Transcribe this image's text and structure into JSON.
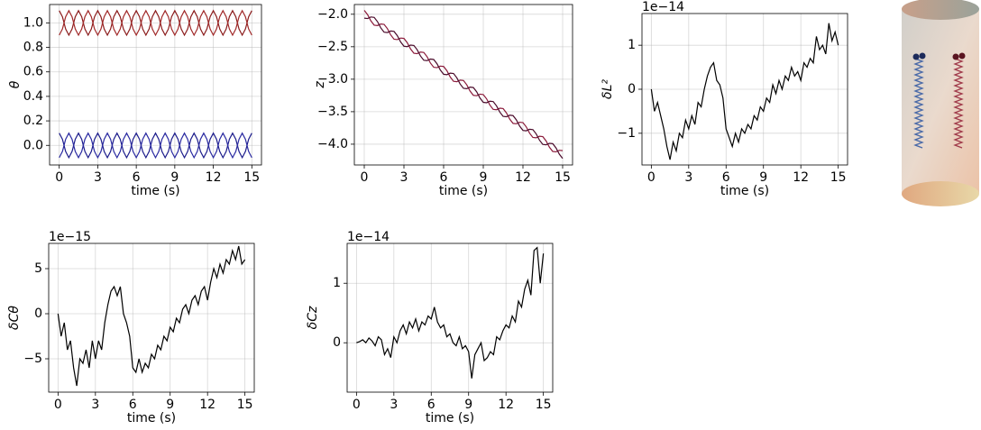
{
  "chart_data": [
    {
      "type": "line",
      "xlabel": "time (s)",
      "ylabel": "θ",
      "grid": true,
      "x": [
        0,
        0.25,
        0.5,
        0.75,
        1,
        1.25,
        1.5,
        1.75,
        2,
        2.25,
        2.5,
        2.75,
        3,
        3.25,
        3.5,
        3.75,
        4,
        4.25,
        4.5,
        4.75,
        5,
        5.25,
        5.5,
        5.75,
        6,
        6.25,
        6.5,
        6.75,
        7,
        7.25,
        7.5,
        7.75,
        8,
        8.25,
        8.5,
        8.75,
        9,
        9.25,
        9.5,
        9.75,
        10,
        10.25,
        10.5,
        10.75,
        11,
        11.25,
        11.5,
        11.75,
        12,
        12.25,
        12.5,
        12.75,
        13,
        13.25,
        13.5,
        13.75,
        14,
        14.25,
        14.5,
        14.75,
        15
      ],
      "xlim": [
        -0.75,
        15.75
      ],
      "ylim": [
        -0.16,
        1.15
      ],
      "xticks": [
        0,
        3,
        6,
        9,
        12,
        15
      ],
      "yticks": [
        {
          "value": 0,
          "label": "0.0"
        },
        0.2,
        0.4,
        0.6,
        0.8,
        {
          "value": 1,
          "label": "1.0"
        }
      ],
      "series": [
        {
          "color": "#8b1c1c",
          "values": [
            1.1,
            1.05,
            0.95,
            0.9,
            0.95,
            1.05,
            1.1,
            1.05,
            0.95,
            0.9,
            0.95,
            1.05,
            1.1,
            1.05,
            0.95,
            0.9,
            0.95,
            1.05,
            1.1,
            1.05,
            0.95,
            0.9,
            0.95,
            1.05,
            1.1,
            1.05,
            0.95,
            0.9,
            0.95,
            1.05,
            1.1,
            1.05,
            0.95,
            0.9,
            0.95,
            1.05,
            1.1,
            1.05,
            0.95,
            0.9,
            0.95,
            1.05,
            1.1,
            1.05,
            0.95,
            0.9,
            0.95,
            1.05,
            1.1,
            1.05,
            0.95,
            0.9,
            0.95,
            1.05,
            1.1,
            1.05,
            0.95,
            0.9,
            0.95,
            1.05,
            1.1
          ]
        },
        {
          "color": "#a12a2a",
          "values": [
            0.9,
            0.95,
            1.05,
            1.1,
            1.05,
            0.95,
            0.9,
            0.95,
            1.05,
            1.1,
            1.05,
            0.95,
            0.9,
            0.95,
            1.05,
            1.1,
            1.05,
            0.95,
            0.9,
            0.95,
            1.05,
            1.1,
            1.05,
            0.95,
            0.9,
            0.95,
            1.05,
            1.1,
            1.05,
            0.95,
            0.9,
            0.95,
            1.05,
            1.1,
            1.05,
            0.95,
            0.9,
            0.95,
            1.05,
            1.1,
            1.05,
            0.95,
            0.9,
            0.95,
            1.05,
            1.1,
            1.05,
            0.95,
            0.9,
            0.95,
            1.05,
            1.1,
            1.05,
            0.95,
            0.9,
            0.95,
            1.05,
            1.1,
            1.05,
            0.95,
            0.9
          ]
        },
        {
          "color": "#1c1c8b",
          "values": [
            0.1,
            0.05,
            -0.05,
            -0.1,
            -0.05,
            0.05,
            0.1,
            0.05,
            -0.05,
            -0.1,
            -0.05,
            0.05,
            0.1,
            0.05,
            -0.05,
            -0.1,
            -0.05,
            0.05,
            0.1,
            0.05,
            -0.05,
            -0.1,
            -0.05,
            0.05,
            0.1,
            0.05,
            -0.05,
            -0.1,
            -0.05,
            0.05,
            0.1,
            0.05,
            -0.05,
            -0.1,
            -0.05,
            0.05,
            0.1,
            0.05,
            -0.05,
            -0.1,
            -0.05,
            0.05,
            0.1,
            0.05,
            -0.05,
            -0.1,
            -0.05,
            0.05,
            0.1,
            0.05,
            -0.05,
            -0.1,
            -0.05,
            0.05,
            0.1,
            0.05,
            -0.05,
            -0.1,
            -0.05,
            0.05,
            0.1
          ]
        },
        {
          "color": "#2a2aa1",
          "values": [
            -0.1,
            -0.05,
            0.05,
            0.1,
            0.05,
            -0.05,
            -0.1,
            -0.05,
            0.05,
            0.1,
            0.05,
            -0.05,
            -0.1,
            -0.05,
            0.05,
            0.1,
            0.05,
            -0.05,
            -0.1,
            -0.05,
            0.05,
            0.1,
            0.05,
            -0.05,
            -0.1,
            -0.05,
            0.05,
            0.1,
            0.05,
            -0.05,
            -0.1,
            -0.05,
            0.05,
            0.1,
            0.05,
            -0.05,
            -0.1,
            -0.05,
            0.05,
            0.1,
            0.05,
            -0.05,
            -0.1,
            -0.05,
            0.05,
            0.1,
            0.05,
            -0.05,
            -0.1,
            -0.05,
            0.05,
            0.1,
            0.05,
            -0.05,
            -0.1,
            -0.05,
            0.05,
            0.1,
            0.05,
            -0.05,
            -0.1
          ]
        }
      ]
    },
    {
      "type": "line",
      "xlabel": "time (s)",
      "ylabel": "z",
      "grid": true,
      "x": [
        0,
        0.25,
        0.5,
        0.75,
        1,
        1.25,
        1.5,
        1.75,
        2,
        2.25,
        2.5,
        2.75,
        3,
        3.25,
        3.5,
        3.75,
        4,
        4.25,
        4.5,
        4.75,
        5,
        5.25,
        5.5,
        5.75,
        6,
        6.25,
        6.5,
        6.75,
        7,
        7.25,
        7.5,
        7.75,
        8,
        8.25,
        8.5,
        8.75,
        9,
        9.25,
        9.5,
        9.75,
        10,
        10.25,
        10.5,
        10.75,
        11,
        11.25,
        11.5,
        11.75,
        12,
        12.25,
        12.5,
        12.75,
        13,
        13.25,
        13.5,
        13.75,
        14,
        14.25,
        14.5,
        14.75,
        15
      ],
      "xlim": [
        -0.75,
        15.75
      ],
      "ylim": [
        -4.32,
        -1.85
      ],
      "xticks": [
        0,
        3,
        6,
        9,
        12,
        15
      ],
      "yticks": [
        {
          "value": -4,
          "label": "−4.0"
        },
        {
          "value": -3.5,
          "label": "−3.5"
        },
        {
          "value": -3,
          "label": "−3.0"
        },
        {
          "value": -2.5,
          "label": "−2.5"
        },
        {
          "value": -2,
          "label": "−2.0"
        }
      ],
      "series": [
        {
          "color": "#8b1a3a",
          "values": [
            -1.94,
            -2.006,
            -2.102,
            -2.168,
            -2.174,
            -2.15,
            -2.156,
            -2.222,
            -2.318,
            -2.384,
            -2.39,
            -2.366,
            -2.372,
            -2.438,
            -2.534,
            -2.6,
            -2.606,
            -2.582,
            -2.588,
            -2.654,
            -2.75,
            -2.816,
            -2.822,
            -2.798,
            -2.804,
            -2.87,
            -2.966,
            -3.032,
            -3.038,
            -3.014,
            -3.02,
            -3.086,
            -3.182,
            -3.248,
            -3.254,
            -3.23,
            -3.236,
            -3.302,
            -3.398,
            -3.464,
            -3.47,
            -3.446,
            -3.452,
            -3.518,
            -3.614,
            -3.68,
            -3.686,
            -3.662,
            -3.668,
            -3.734,
            -3.83,
            -3.896,
            -3.902,
            -3.878,
            -3.884,
            -3.95,
            -4.046,
            -4.112,
            -4.118,
            -4.094,
            -4.1
          ]
        },
        {
          "color": "#4a0a2a",
          "values": [
            -2.06,
            -2.066,
            -2.042,
            -2.048,
            -2.114,
            -2.21,
            -2.276,
            -2.282,
            -2.258,
            -2.264,
            -2.33,
            -2.426,
            -2.492,
            -2.498,
            -2.474,
            -2.48,
            -2.546,
            -2.642,
            -2.708,
            -2.714,
            -2.69,
            -2.696,
            -2.762,
            -2.858,
            -2.924,
            -2.93,
            -2.906,
            -2.912,
            -2.978,
            -3.074,
            -3.14,
            -3.146,
            -3.122,
            -3.128,
            -3.194,
            -3.29,
            -3.356,
            -3.362,
            -3.338,
            -3.344,
            -3.41,
            -3.506,
            -3.572,
            -3.578,
            -3.554,
            -3.56,
            -3.626,
            -3.722,
            -3.788,
            -3.794,
            -3.77,
            -3.776,
            -3.842,
            -3.938,
            -4.004,
            -4.01,
            -3.986,
            -3.992,
            -4.058,
            -4.154,
            -4.22
          ]
        }
      ]
    },
    {
      "type": "line",
      "xlabel": "time (s)",
      "ylabel": "δL²",
      "offset_text": "1e−14",
      "grid": true,
      "x": [
        0,
        0.25,
        0.5,
        0.75,
        1,
        1.25,
        1.5,
        1.75,
        2,
        2.25,
        2.5,
        2.75,
        3,
        3.25,
        3.5,
        3.75,
        4,
        4.25,
        4.5,
        4.75,
        5,
        5.25,
        5.5,
        5.75,
        6,
        6.25,
        6.5,
        6.75,
        7,
        7.25,
        7.5,
        7.75,
        8,
        8.25,
        8.5,
        8.75,
        9,
        9.25,
        9.5,
        9.75,
        10,
        10.25,
        10.5,
        10.75,
        11,
        11.25,
        11.5,
        11.75,
        12,
        12.25,
        12.5,
        12.75,
        13,
        13.25,
        13.5,
        13.75,
        14,
        14.25,
        14.5,
        14.75,
        15
      ],
      "xlim": [
        -0.75,
        15.75
      ],
      "ylim": [
        -1.72,
        1.72
      ],
      "xticks": [
        0,
        3,
        6,
        9,
        12,
        15
      ],
      "yticks": [
        {
          "value": -1,
          "label": "−1"
        },
        0,
        1
      ],
      "series": [
        {
          "color": "#000000",
          "values": [
            0,
            -0.5,
            -0.3,
            -0.6,
            -0.9,
            -1.3,
            -1.6,
            -1.2,
            -1.4,
            -1.0,
            -1.1,
            -0.7,
            -0.9,
            -0.6,
            -0.8,
            -0.3,
            -0.4,
            0.0,
            0.3,
            0.5,
            0.6,
            0.2,
            0.1,
            -0.2,
            -0.9,
            -1.1,
            -1.3,
            -1.0,
            -1.2,
            -0.9,
            -1.0,
            -0.8,
            -0.9,
            -0.6,
            -0.7,
            -0.4,
            -0.5,
            -0.2,
            -0.3,
            0.1,
            -0.1,
            0.2,
            0.0,
            0.3,
            0.2,
            0.5,
            0.3,
            0.4,
            0.2,
            0.6,
            0.5,
            0.7,
            0.6,
            1.2,
            0.9,
            1.0,
            0.8,
            1.5,
            1.1,
            1.3,
            1.0
          ]
        }
      ]
    },
    {
      "type": "line",
      "xlabel": "time (s)",
      "ylabel": "δCθ",
      "offset_text": "1e−15",
      "grid": true,
      "x": [
        0,
        0.25,
        0.5,
        0.75,
        1,
        1.25,
        1.5,
        1.75,
        2,
        2.25,
        2.5,
        2.75,
        3,
        3.25,
        3.5,
        3.75,
        4,
        4.25,
        4.5,
        4.75,
        5,
        5.25,
        5.5,
        5.75,
        6,
        6.25,
        6.5,
        6.75,
        7,
        7.25,
        7.5,
        7.75,
        8,
        8.25,
        8.5,
        8.75,
        9,
        9.25,
        9.5,
        9.75,
        10,
        10.25,
        10.5,
        10.75,
        11,
        11.25,
        11.5,
        11.75,
        12,
        12.25,
        12.5,
        12.75,
        13,
        13.25,
        13.5,
        13.75,
        14,
        14.25,
        14.5,
        14.75,
        15
      ],
      "xlim": [
        -0.75,
        15.75
      ],
      "ylim": [
        -8.7,
        7.8
      ],
      "xticks": [
        0,
        3,
        6,
        9,
        12,
        15
      ],
      "yticks": [
        {
          "value": -5,
          "label": "−5"
        },
        0,
        5
      ],
      "series": [
        {
          "color": "#000000",
          "values": [
            0,
            -2.5,
            -1,
            -4,
            -3,
            -6,
            -8,
            -5,
            -5.5,
            -4,
            -6,
            -3,
            -5,
            -3,
            -4,
            -1,
            1,
            2.5,
            3,
            2,
            3,
            0,
            -1,
            -2.5,
            -6,
            -6.5,
            -5,
            -6.5,
            -5.5,
            -6,
            -4.5,
            -5,
            -3.5,
            -4,
            -2.5,
            -3,
            -1.5,
            -2,
            -0.5,
            -1,
            0.5,
            1,
            0,
            1.5,
            2,
            1,
            2.5,
            3,
            1.5,
            3.5,
            5,
            4,
            5.5,
            4.5,
            6,
            5.5,
            7,
            6,
            7.5,
            5.5,
            6
          ]
        }
      ]
    },
    {
      "type": "line",
      "xlabel": "time (s)",
      "ylabel": "δCz",
      "offset_text": "1e−14",
      "grid": true,
      "x": [
        0,
        0.25,
        0.5,
        0.75,
        1,
        1.25,
        1.5,
        1.75,
        2,
        2.25,
        2.5,
        2.75,
        3,
        3.25,
        3.5,
        3.75,
        4,
        4.25,
        4.5,
        4.75,
        5,
        5.25,
        5.5,
        5.75,
        6,
        6.25,
        6.5,
        6.75,
        7,
        7.25,
        7.5,
        7.75,
        8,
        8.25,
        8.5,
        8.75,
        9,
        9.25,
        9.5,
        9.75,
        10,
        10.25,
        10.5,
        10.75,
        11,
        11.25,
        11.5,
        11.75,
        12,
        12.25,
        12.5,
        12.75,
        13,
        13.25,
        13.5,
        13.75,
        14,
        14.25,
        14.5,
        14.75,
        15
      ],
      "xlim": [
        -0.75,
        15.75
      ],
      "ylim": [
        -0.83,
        1.67
      ],
      "xticks": [
        0,
        3,
        6,
        9,
        12,
        15
      ],
      "yticks": [
        0,
        1
      ],
      "series": [
        {
          "color": "#000000",
          "values": [
            0,
            0.02,
            0.05,
            0.0,
            0.08,
            0.03,
            -0.05,
            0.1,
            0.05,
            -0.2,
            -0.1,
            -0.25,
            0.1,
            0.0,
            0.2,
            0.3,
            0.15,
            0.35,
            0.25,
            0.4,
            0.2,
            0.35,
            0.3,
            0.45,
            0.4,
            0.6,
            0.35,
            0.25,
            0.3,
            0.1,
            0.15,
            0.0,
            -0.05,
            0.1,
            -0.1,
            -0.05,
            -0.15,
            -0.6,
            -0.2,
            -0.1,
            0.0,
            -0.3,
            -0.25,
            -0.15,
            -0.2,
            0.1,
            0.05,
            0.2,
            0.3,
            0.25,
            0.45,
            0.35,
            0.7,
            0.6,
            0.9,
            1.05,
            0.8,
            1.55,
            1.6,
            1.0,
            1.5
          ]
        }
      ]
    }
  ]
}
